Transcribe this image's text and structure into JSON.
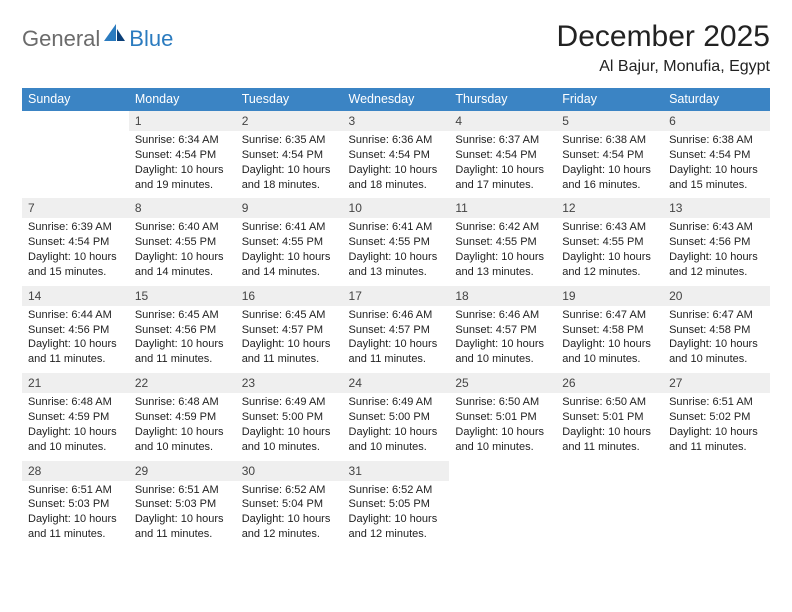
{
  "logo": {
    "text_general": "General",
    "text_blue": "Blue"
  },
  "title": "December 2025",
  "location": "Al Bajur, Monufia, Egypt",
  "styling": {
    "header_bg": "#3b84c4",
    "header_text_color": "#ffffff",
    "daynum_bg": "#efefef",
    "divider_color": "#3b84c4",
    "body_text_color": "#222222",
    "logo_gray": "#6b6b6b",
    "logo_blue": "#2b7bbf",
    "title_fontsize": 30,
    "location_fontsize": 16,
    "header_fontsize": 12.5,
    "cell_fontsize": 11
  },
  "day_names": [
    "Sunday",
    "Monday",
    "Tuesday",
    "Wednesday",
    "Thursday",
    "Friday",
    "Saturday"
  ],
  "weeks": [
    [
      {
        "blank": true
      },
      {
        "day": "1",
        "sunrise": "Sunrise: 6:34 AM",
        "sunset": "Sunset: 4:54 PM",
        "daylight": "Daylight: 10 hours and 19 minutes."
      },
      {
        "day": "2",
        "sunrise": "Sunrise: 6:35 AM",
        "sunset": "Sunset: 4:54 PM",
        "daylight": "Daylight: 10 hours and 18 minutes."
      },
      {
        "day": "3",
        "sunrise": "Sunrise: 6:36 AM",
        "sunset": "Sunset: 4:54 PM",
        "daylight": "Daylight: 10 hours and 18 minutes."
      },
      {
        "day": "4",
        "sunrise": "Sunrise: 6:37 AM",
        "sunset": "Sunset: 4:54 PM",
        "daylight": "Daylight: 10 hours and 17 minutes."
      },
      {
        "day": "5",
        "sunrise": "Sunrise: 6:38 AM",
        "sunset": "Sunset: 4:54 PM",
        "daylight": "Daylight: 10 hours and 16 minutes."
      },
      {
        "day": "6",
        "sunrise": "Sunrise: 6:38 AM",
        "sunset": "Sunset: 4:54 PM",
        "daylight": "Daylight: 10 hours and 15 minutes."
      }
    ],
    [
      {
        "day": "7",
        "sunrise": "Sunrise: 6:39 AM",
        "sunset": "Sunset: 4:54 PM",
        "daylight": "Daylight: 10 hours and 15 minutes."
      },
      {
        "day": "8",
        "sunrise": "Sunrise: 6:40 AM",
        "sunset": "Sunset: 4:55 PM",
        "daylight": "Daylight: 10 hours and 14 minutes."
      },
      {
        "day": "9",
        "sunrise": "Sunrise: 6:41 AM",
        "sunset": "Sunset: 4:55 PM",
        "daylight": "Daylight: 10 hours and 14 minutes."
      },
      {
        "day": "10",
        "sunrise": "Sunrise: 6:41 AM",
        "sunset": "Sunset: 4:55 PM",
        "daylight": "Daylight: 10 hours and 13 minutes."
      },
      {
        "day": "11",
        "sunrise": "Sunrise: 6:42 AM",
        "sunset": "Sunset: 4:55 PM",
        "daylight": "Daylight: 10 hours and 13 minutes."
      },
      {
        "day": "12",
        "sunrise": "Sunrise: 6:43 AM",
        "sunset": "Sunset: 4:55 PM",
        "daylight": "Daylight: 10 hours and 12 minutes."
      },
      {
        "day": "13",
        "sunrise": "Sunrise: 6:43 AM",
        "sunset": "Sunset: 4:56 PM",
        "daylight": "Daylight: 10 hours and 12 minutes."
      }
    ],
    [
      {
        "day": "14",
        "sunrise": "Sunrise: 6:44 AM",
        "sunset": "Sunset: 4:56 PM",
        "daylight": "Daylight: 10 hours and 11 minutes."
      },
      {
        "day": "15",
        "sunrise": "Sunrise: 6:45 AM",
        "sunset": "Sunset: 4:56 PM",
        "daylight": "Daylight: 10 hours and 11 minutes."
      },
      {
        "day": "16",
        "sunrise": "Sunrise: 6:45 AM",
        "sunset": "Sunset: 4:57 PM",
        "daylight": "Daylight: 10 hours and 11 minutes."
      },
      {
        "day": "17",
        "sunrise": "Sunrise: 6:46 AM",
        "sunset": "Sunset: 4:57 PM",
        "daylight": "Daylight: 10 hours and 11 minutes."
      },
      {
        "day": "18",
        "sunrise": "Sunrise: 6:46 AM",
        "sunset": "Sunset: 4:57 PM",
        "daylight": "Daylight: 10 hours and 10 minutes."
      },
      {
        "day": "19",
        "sunrise": "Sunrise: 6:47 AM",
        "sunset": "Sunset: 4:58 PM",
        "daylight": "Daylight: 10 hours and 10 minutes."
      },
      {
        "day": "20",
        "sunrise": "Sunrise: 6:47 AM",
        "sunset": "Sunset: 4:58 PM",
        "daylight": "Daylight: 10 hours and 10 minutes."
      }
    ],
    [
      {
        "day": "21",
        "sunrise": "Sunrise: 6:48 AM",
        "sunset": "Sunset: 4:59 PM",
        "daylight": "Daylight: 10 hours and 10 minutes."
      },
      {
        "day": "22",
        "sunrise": "Sunrise: 6:48 AM",
        "sunset": "Sunset: 4:59 PM",
        "daylight": "Daylight: 10 hours and 10 minutes."
      },
      {
        "day": "23",
        "sunrise": "Sunrise: 6:49 AM",
        "sunset": "Sunset: 5:00 PM",
        "daylight": "Daylight: 10 hours and 10 minutes."
      },
      {
        "day": "24",
        "sunrise": "Sunrise: 6:49 AM",
        "sunset": "Sunset: 5:00 PM",
        "daylight": "Daylight: 10 hours and 10 minutes."
      },
      {
        "day": "25",
        "sunrise": "Sunrise: 6:50 AM",
        "sunset": "Sunset: 5:01 PM",
        "daylight": "Daylight: 10 hours and 10 minutes."
      },
      {
        "day": "26",
        "sunrise": "Sunrise: 6:50 AM",
        "sunset": "Sunset: 5:01 PM",
        "daylight": "Daylight: 10 hours and 11 minutes."
      },
      {
        "day": "27",
        "sunrise": "Sunrise: 6:51 AM",
        "sunset": "Sunset: 5:02 PM",
        "daylight": "Daylight: 10 hours and 11 minutes."
      }
    ],
    [
      {
        "day": "28",
        "sunrise": "Sunrise: 6:51 AM",
        "sunset": "Sunset: 5:03 PM",
        "daylight": "Daylight: 10 hours and 11 minutes."
      },
      {
        "day": "29",
        "sunrise": "Sunrise: 6:51 AM",
        "sunset": "Sunset: 5:03 PM",
        "daylight": "Daylight: 10 hours and 11 minutes."
      },
      {
        "day": "30",
        "sunrise": "Sunrise: 6:52 AM",
        "sunset": "Sunset: 5:04 PM",
        "daylight": "Daylight: 10 hours and 12 minutes."
      },
      {
        "day": "31",
        "sunrise": "Sunrise: 6:52 AM",
        "sunset": "Sunset: 5:05 PM",
        "daylight": "Daylight: 10 hours and 12 minutes."
      },
      {
        "blank": true
      },
      {
        "blank": true
      },
      {
        "blank": true
      }
    ]
  ]
}
